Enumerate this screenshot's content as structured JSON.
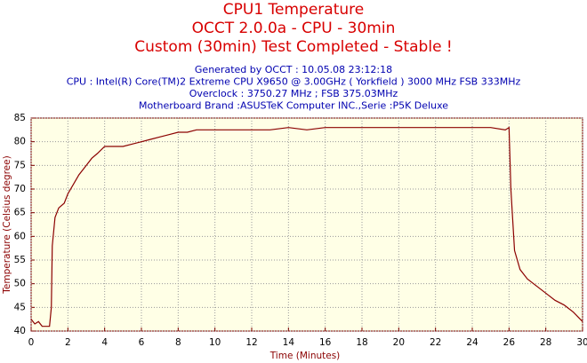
{
  "chart_data": {
    "type": "line",
    "title": [
      "CPU1 Temperature",
      "OCCT 2.0.0a - CPU - 30min",
      "Custom (30min) Test Completed - Stable !"
    ],
    "subtitle": [
      "Generated by OCCT : 10.05.08 23:12:18",
      "CPU : Intel(R) Core(TM)2 Extreme CPU X9650 @ 3.00GHz ( Yorkfield ) 3000 MHz FSB 333MHz",
      "Overclock : 3750.27 MHz ; FSB 375.03MHz",
      "Motherboard Brand :ASUSTeK Computer INC.,Serie :P5K Deluxe"
    ],
    "x_label": "Time (Minutes)",
    "y_label": "Temperature (Celsius degree)",
    "x": [
      0,
      0.2,
      0.4,
      0.6,
      1.0,
      1.1,
      1.15,
      1.3,
      1.5,
      1.8,
      2.0,
      2.3,
      2.6,
      3.0,
      3.3,
      3.6,
      4.0,
      4.5,
      5.0,
      5.5,
      6.0,
      6.5,
      7.0,
      7.5,
      8.0,
      8.5,
      9.0,
      10,
      11,
      12,
      13,
      14,
      15,
      16,
      17,
      18,
      19,
      20,
      21,
      22,
      23,
      24,
      25,
      25.8,
      26.0,
      26.1,
      26.3,
      26.6,
      27,
      27.5,
      28,
      28.5,
      29,
      29.5,
      30
    ],
    "values": [
      42.5,
      41.5,
      42,
      41,
      41,
      45,
      58,
      64,
      66,
      67,
      69,
      71,
      73,
      75,
      76.5,
      77.5,
      79,
      79,
      79,
      79.5,
      80,
      80.5,
      81,
      81.5,
      82,
      82,
      82.5,
      82.5,
      82.5,
      82.5,
      82.5,
      83,
      82.5,
      83,
      83,
      83,
      83,
      83,
      83,
      83,
      83,
      83,
      83,
      82.5,
      83,
      70,
      57,
      53,
      51,
      49.5,
      48,
      46.5,
      45.5,
      44,
      42
    ],
    "color": "#8b0000",
    "xlim": [
      0,
      30
    ],
    "xticks": [
      0,
      2,
      4,
      6,
      8,
      10,
      12,
      14,
      16,
      18,
      20,
      22,
      24,
      26,
      28,
      30
    ],
    "ylim": [
      40,
      85
    ],
    "yticks": [
      40,
      45,
      50,
      55,
      60,
      65,
      70,
      75,
      80,
      85
    ],
    "grid": true
  }
}
